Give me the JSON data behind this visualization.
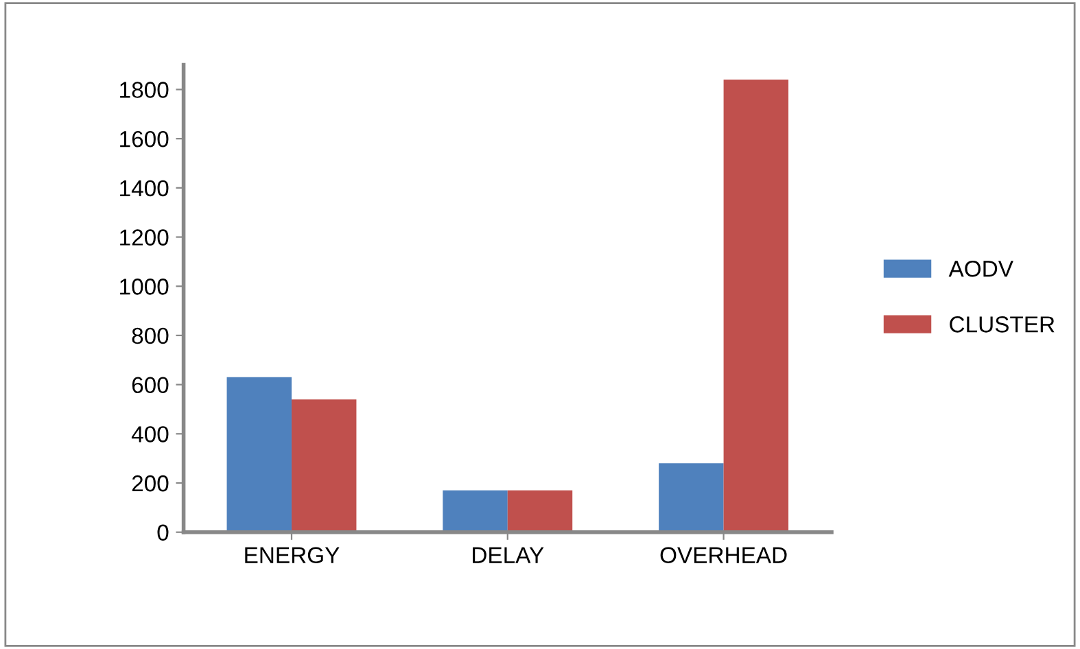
{
  "chart_data": {
    "type": "bar",
    "categories": [
      "ENERGY",
      "DELAY",
      "OVERHEAD"
    ],
    "series": [
      {
        "name": "AODV",
        "color": "#4f81bd",
        "values": [
          630,
          170,
          280
        ]
      },
      {
        "name": "CLUSTER",
        "color": "#c0504d",
        "values": [
          540,
          170,
          1840
        ]
      }
    ],
    "ylim": [
      0,
      1900
    ],
    "yticks": [
      0,
      200,
      400,
      600,
      800,
      1000,
      1200,
      1400,
      1600,
      1800
    ],
    "grid": false,
    "legend": "right"
  }
}
